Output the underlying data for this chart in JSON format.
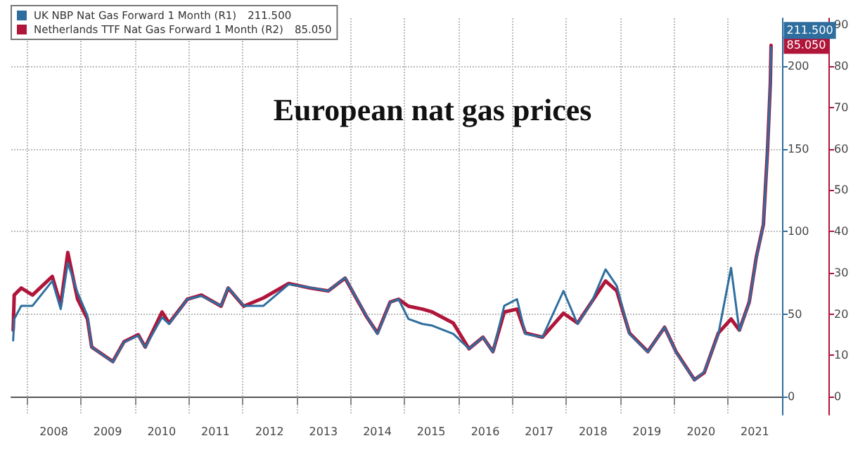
{
  "chart_data": {
    "type": "line",
    "title": "European nat gas prices",
    "x": [
      "2007-09-30",
      "2007-10-07",
      "2007-11-24",
      "2008-02-08",
      "2008-06-21",
      "2008-08-17",
      "2008-10-04",
      "2008-12-09",
      "2009-02-14",
      "2009-03-15",
      "2009-08-05",
      "2009-10-20",
      "2010-01-24",
      "2010-03-12",
      "2010-07-04",
      "2010-08-21",
      "2010-12-23",
      "2011-03-28",
      "2011-08-08",
      "2011-09-25",
      "2012-01-08",
      "2012-05-21",
      "2012-11-08",
      "2013-04-01",
      "2013-08-03",
      "2013-11-25",
      "2014-04-17",
      "2014-07-02",
      "2014-09-26",
      "2014-11-22",
      "2015-01-28",
      "2015-05-03",
      "2015-07-08",
      "2015-11-28",
      "2016-03-13",
      "2016-06-16",
      "2016-08-22",
      "2016-11-07",
      "2017-02-01",
      "2017-03-30",
      "2017-07-23",
      "2017-12-13",
      "2018-03-18",
      "2018-06-21",
      "2018-09-24",
      "2018-12-09",
      "2019-03-05",
      "2019-07-07",
      "2019-10-29",
      "2020-01-14",
      "2020-05-18",
      "2020-07-23",
      "2020-10-27",
      "2021-01-21",
      "2021-03-18",
      "2021-05-24",
      "2021-07-11",
      "2021-08-28",
      "2021-09-25",
      "2021-10-14",
      "2021-10-19"
    ],
    "series": [
      {
        "name": "UK NBP Nat Gas Forward 1 Month (R1)",
        "color": "#2e6e9e",
        "values": [
          34,
          47,
          55,
          55,
          70,
          53,
          81,
          63,
          49,
          30,
          21,
          33,
          37,
          30,
          48,
          44,
          59,
          61,
          55,
          66,
          55,
          55,
          68,
          66,
          64,
          72,
          49,
          38,
          57,
          59,
          47,
          44,
          43,
          38,
          29,
          36,
          27,
          55,
          59,
          38,
          36,
          64,
          44,
          57,
          77,
          67,
          38,
          27,
          42,
          27,
          10,
          15,
          38,
          78,
          40,
          57,
          84,
          104,
          149,
          189,
          211.5
        ],
        "value_labels": [
          null,
          null,
          null,
          null,
          null,
          null,
          null,
          null,
          null,
          null,
          null,
          null,
          null,
          null,
          null,
          null,
          null,
          null,
          null,
          null,
          null,
          null,
          null,
          null,
          null,
          null,
          null,
          null,
          null,
          null,
          null,
          null,
          null,
          null,
          null,
          null,
          null,
          null,
          null,
          null,
          null,
          null,
          null,
          null,
          null,
          null,
          null,
          null,
          null,
          null,
          null,
          null,
          null,
          null,
          null,
          null,
          null,
          null,
          null,
          null,
          "211.500"
        ]
      },
      {
        "name": "Netherlands TTF Nat Gas Forward 1 Month (R2)",
        "color": "#b0153a",
        "axis": "y2",
        "values": [
          16.1,
          24.6,
          26.3,
          24.6,
          29.1,
          22.2,
          34.9,
          23.6,
          18.8,
          12,
          8.5,
          13.3,
          15,
          12,
          20.5,
          17.8,
          23.6,
          24.6,
          21.9,
          26.3,
          21.9,
          23.9,
          27.4,
          26.3,
          25.6,
          28.7,
          19.5,
          15.4,
          22.9,
          23.6,
          21.9,
          21.2,
          20.5,
          17.8,
          11.6,
          14.4,
          10.9,
          20.5,
          21.2,
          15.4,
          14.4,
          20.2,
          17.8,
          22.9,
          28,
          25.6,
          15.4,
          10.9,
          16.8,
          10.9,
          4.1,
          5.8,
          15.4,
          18.8,
          16.1,
          22.9,
          33.8,
          41.7,
          59.8,
          75.9,
          85.05
        ],
        "value_labels": [
          null,
          null,
          null,
          null,
          null,
          null,
          null,
          null,
          null,
          null,
          null,
          null,
          null,
          null,
          null,
          null,
          null,
          null,
          null,
          null,
          null,
          null,
          null,
          null,
          null,
          null,
          null,
          null,
          null,
          null,
          null,
          null,
          null,
          null,
          null,
          null,
          null,
          null,
          null,
          null,
          null,
          null,
          null,
          null,
          null,
          null,
          null,
          null,
          null,
          null,
          null,
          null,
          null,
          null,
          null,
          null,
          null,
          null,
          null,
          null,
          "85.050"
        ]
      }
    ],
    "xlim": [
      "2007-09-17",
      "2022-01-01"
    ],
    "xticks": [
      {
        "value": "2008-01-01",
        "label": null
      },
      {
        "value": "2008-07-01",
        "label": "2008"
      },
      {
        "value": "2009-01-01",
        "label": null
      },
      {
        "value": "2009-07-01",
        "label": "2009"
      },
      {
        "value": "2010-01-01",
        "label": null
      },
      {
        "value": "2010-07-01",
        "label": "2010"
      },
      {
        "value": "2011-01-01",
        "label": null
      },
      {
        "value": "2011-07-01",
        "label": "2011"
      },
      {
        "value": "2012-01-01",
        "label": null
      },
      {
        "value": "2012-07-01",
        "label": "2012"
      },
      {
        "value": "2013-01-01",
        "label": null
      },
      {
        "value": "2013-07-01",
        "label": "2013"
      },
      {
        "value": "2014-01-01",
        "label": null
      },
      {
        "value": "2014-07-01",
        "label": "2014"
      },
      {
        "value": "2015-01-01",
        "label": null
      },
      {
        "value": "2015-07-01",
        "label": "2015"
      },
      {
        "value": "2016-01-01",
        "label": null
      },
      {
        "value": "2016-07-01",
        "label": "2016"
      },
      {
        "value": "2017-01-01",
        "label": null
      },
      {
        "value": "2017-07-01",
        "label": "2017"
      },
      {
        "value": "2018-01-01",
        "label": null
      },
      {
        "value": "2018-07-01",
        "label": "2018"
      },
      {
        "value": "2019-01-01",
        "label": null
      },
      {
        "value": "2019-07-01",
        "label": "2019"
      },
      {
        "value": "2020-01-01",
        "label": null
      },
      {
        "value": "2020-07-01",
        "label": "2020"
      },
      {
        "value": "2021-01-01",
        "label": null
      },
      {
        "value": "2021-07-01",
        "label": "2021"
      }
    ],
    "ylim": [
      -11,
      229
    ],
    "yticks": [
      0,
      50,
      100,
      150,
      200
    ],
    "y2lim": [
      -4.4,
      91.6
    ],
    "y2ticks": [
      0,
      10,
      20,
      30,
      40,
      50,
      60,
      70,
      80,
      90
    ],
    "grid": true,
    "legend": "top left",
    "marker": "none",
    "line_style": "solid"
  }
}
